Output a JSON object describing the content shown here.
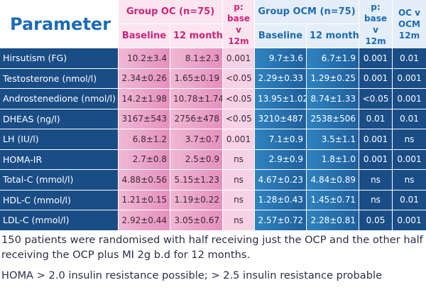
{
  "header": {
    "parameter": "Parameter",
    "group_oc": "Group OC (n=75)",
    "group_ocm": "Group OCM (n=75)",
    "baseline": "Baseline",
    "twelve_months": "12 months",
    "p_base_v_12m_line1": "p:",
    "p_base_v_12m_line2": "base v",
    "p_base_v_12m_line3": "12m",
    "oc_v_ocm_line1": "OC v",
    "oc_v_ocm_line2": "OCM",
    "oc_v_ocm_line3": "12m"
  },
  "rows": [
    {
      "name": "Hirsutism (FG)",
      "oc_base": "10.2±3.4",
      "oc_12": "8.1±2.3",
      "oc_p": "0.001",
      "ocm_base": "9.7±3.6",
      "ocm_12": "6.7±1.9",
      "ocm_p": "0.001",
      "oc_v_ocm": "0.01"
    },
    {
      "name": "Testosterone (nmol/l)",
      "oc_base": "2.34±0.26",
      "oc_12": "1.65±0.19",
      "oc_p": "<0.05",
      "ocm_base": "2.29±0.33",
      "ocm_12": "1.29±0.25",
      "ocm_p": "0.001",
      "oc_v_ocm": "0.001"
    },
    {
      "name": "Androstenedione (nmol/l)",
      "oc_base": "14.2±1.98",
      "oc_12": "10.78±1.74",
      "oc_p": "<0.05",
      "ocm_base": "13.95±1.02",
      "ocm_12": "8.74±1.33",
      "ocm_p": "<0.05",
      "oc_v_ocm": "0.001"
    },
    {
      "name": "DHEAS (ng/l)",
      "oc_base": "3167±543",
      "oc_12": "2756±478",
      "oc_p": "<0.05",
      "ocm_base": "3210±487",
      "ocm_12": "2538±506",
      "ocm_p": "0.01",
      "oc_v_ocm": "0.01"
    },
    {
      "name": "LH (IU/l)",
      "oc_base": "6.8±1.2",
      "oc_12": "3.7±0.7",
      "oc_p": "0.001",
      "ocm_base": "7.1±0.9",
      "ocm_12": "3.5±1.1",
      "ocm_p": "0.001",
      "oc_v_ocm": "ns"
    },
    {
      "name": "HOMA-IR",
      "oc_base": "2.7±0.8",
      "oc_12": "2.5±0.9",
      "oc_p": "ns",
      "ocm_base": "2.9±0.9",
      "ocm_12": "1.8±1.0",
      "ocm_p": "0.001",
      "oc_v_ocm": "0.001"
    },
    {
      "name": "Total-C (mmol/l)",
      "oc_base": "4.88±0.56",
      "oc_12": "5.15±1.23",
      "oc_p": "ns",
      "ocm_base": "4.67±0.23",
      "ocm_12": "4.84±0.89",
      "ocm_p": "ns",
      "oc_v_ocm": "ns"
    },
    {
      "name": "HDL-C (mmol/l)",
      "oc_base": "1.21±0.15",
      "oc_12": "1.19±0.22",
      "oc_p": "ns",
      "ocm_base": "1.28±0.43",
      "ocm_12": "1.45±0.71",
      "ocm_p": "ns",
      "oc_v_ocm": "0.01"
    },
    {
      "name": "LDL-C (mmol/l)",
      "oc_base": "2.92±0.44",
      "oc_12": "3.05±0.67",
      "oc_p": "ns",
      "ocm_base": "2.57±0.72",
      "ocm_12": "2.28±0.81",
      "ocm_p": "0.05",
      "oc_v_ocm": "0.001"
    }
  ],
  "notes": {
    "line1": "150 patients were randomised with half receiving just the OCP and the other half receiving the OCP plus MI 2g b.d for 12 months.",
    "line2": "HOMA > 2.0 insulin resistance possible; > 2.5 insulin resistance probable"
  },
  "colors": {
    "oc_accent": "#d0237b",
    "ocm_accent": "#1e6bb5",
    "param_bg": "#1a4d86"
  }
}
